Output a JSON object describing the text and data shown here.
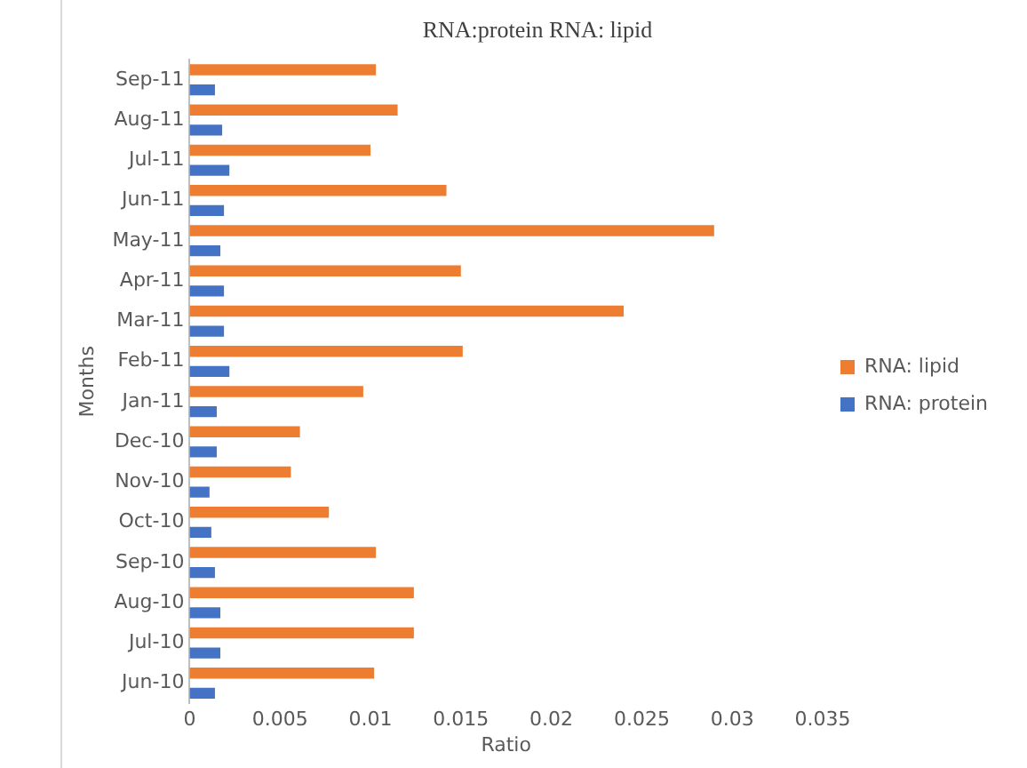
{
  "chart_data": {
    "type": "bar",
    "orientation": "horizontal",
    "title": "RNA:protein RNA: lipid",
    "xlabel": "Ratio",
    "ylabel": "Months",
    "categories": [
      "Sep-11",
      "Aug-11",
      "Jul-11",
      "Jun-11",
      "May-11",
      "Apr-11",
      "Mar-11",
      "Feb-11",
      "Jan-11",
      "Dec-10",
      "Nov-10",
      "Oct-10",
      "Sep-10",
      "Aug-10",
      "Jul-10",
      "Jun-10"
    ],
    "series": [
      {
        "name": "RNA: lipid",
        "color": "#ed7d31",
        "values": [
          0.0103,
          0.0115,
          0.01,
          0.0142,
          0.029,
          0.015,
          0.024,
          0.0151,
          0.0096,
          0.0061,
          0.0056,
          0.0077,
          0.0103,
          0.0124,
          0.0124,
          0.0102
        ]
      },
      {
        "name": "RNA: protein",
        "color": "#4472c4",
        "values": [
          0.0014,
          0.0018,
          0.0022,
          0.0019,
          0.0017,
          0.0019,
          0.0019,
          0.0022,
          0.0015,
          0.0015,
          0.0011,
          0.0012,
          0.0014,
          0.0017,
          0.0017,
          0.0014
        ]
      }
    ],
    "xlim": [
      0,
      0.035
    ],
    "xticks": [
      0,
      0.005,
      0.01,
      0.015,
      0.02,
      0.025,
      0.03,
      0.035
    ],
    "grid": false,
    "legend": "right"
  }
}
